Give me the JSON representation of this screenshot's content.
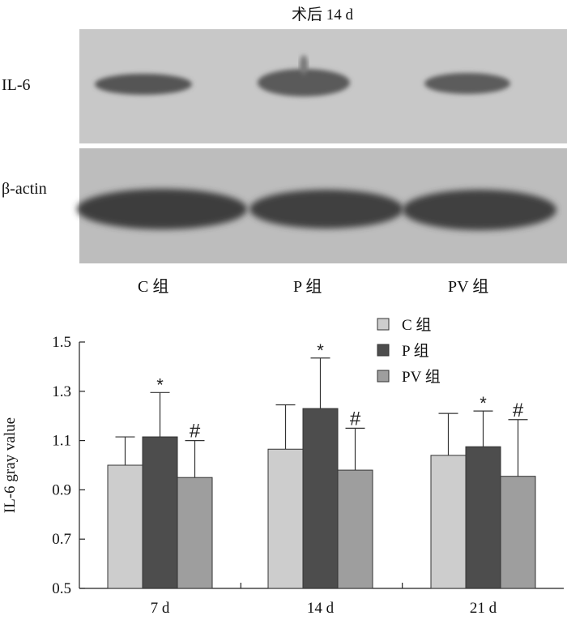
{
  "blot": {
    "title": "术后 14 d",
    "rows": [
      {
        "label": "IL-6"
      },
      {
        "label": "β-actin"
      }
    ],
    "lanes": [
      "C 组",
      "P 组",
      "PV 组"
    ]
  },
  "chart_data": {
    "type": "bar",
    "categories": [
      "7 d",
      "14 d",
      "21 d"
    ],
    "series": [
      {
        "name": "C 组",
        "color": "#cdcdcd",
        "values": [
          1.0,
          1.065,
          1.04
        ],
        "errors": [
          0.115,
          0.18,
          0.17
        ],
        "marks": [
          "",
          "",
          ""
        ]
      },
      {
        "name": "P 组",
        "color": "#4d4d4d",
        "values": [
          1.115,
          1.23,
          1.075
        ],
        "errors": [
          0.18,
          0.205,
          0.145
        ],
        "marks": [
          "*",
          "*",
          "*"
        ]
      },
      {
        "name": "PV 组",
        "color": "#9e9e9e",
        "values": [
          0.95,
          0.98,
          0.955
        ],
        "errors": [
          0.15,
          0.17,
          0.23
        ],
        "marks": [
          "#",
          "#",
          "#"
        ]
      }
    ],
    "ylabel": "IL-6 gray value",
    "xlabel": "",
    "ylim": [
      0.5,
      1.5
    ],
    "yticks": [
      "0.5",
      "0.7",
      "0.9",
      "1.1",
      "1.3",
      "1.5"
    ],
    "grid": false,
    "legend_position": "top-right"
  }
}
